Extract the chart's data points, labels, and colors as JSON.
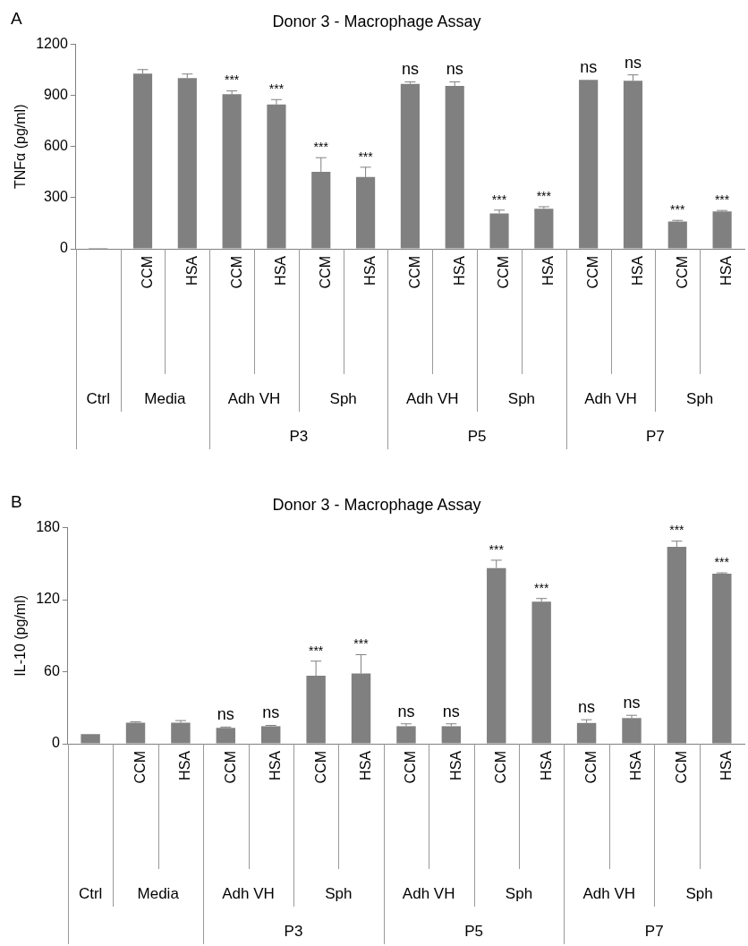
{
  "chart_data": [
    {
      "type": "bar",
      "title": "Donor 3 - Macrophage Assay",
      "ylabel": "TNFα (pg/ml)",
      "categories": [
        null,
        "CCM",
        "HSA",
        "CCM",
        "HSA",
        "CCM",
        "HSA",
        "CCM",
        "HSA",
        "CCM",
        "HSA",
        "CCM",
        "HSA",
        "CCM",
        "HSA"
      ],
      "values": [
        5,
        1028,
        1002,
        907,
        847,
        452,
        421,
        968,
        956,
        208,
        235,
        992,
        987,
        160,
        220
      ],
      "color": "#808080",
      "errors": [
        null,
        [
          1028,
          1052
        ],
        [
          1002,
          1026
        ],
        [
          907,
          927
        ],
        [
          847,
          876
        ],
        [
          452,
          535
        ],
        [
          421,
          479
        ],
        [
          968,
          980
        ],
        [
          956,
          980
        ],
        [
          208,
          227
        ],
        [
          235,
          247
        ],
        null,
        [
          987,
          1021
        ],
        [
          160,
          167
        ],
        [
          220,
          225
        ]
      ],
      "value_labels": [
        null,
        null,
        null,
        "***",
        "***",
        "***",
        "***",
        "ns",
        "ns",
        "***",
        "***",
        "ns",
        "ns",
        "***",
        "***"
      ],
      "ylim": [
        0,
        1200
      ],
      "yticks": [
        0,
        300,
        600,
        900,
        1200
      ],
      "grid": false,
      "legend": false,
      "annotations": [
        "A",
        "Ctrl",
        "Media",
        "Adh VH",
        "Sph",
        "Adh VH",
        "Sph",
        "Adh VH",
        "Sph",
        "P3",
        "P5",
        "P7"
      ]
    },
    {
      "type": "bar",
      "title": "Donor 3 - Macrophage Assay",
      "ylabel": "IL-10 (pg/ml)",
      "categories": [
        null,
        "CCM",
        "HSA",
        "CCM",
        "HSA",
        "CCM",
        "HSA",
        "CCM",
        "HSA",
        "CCM",
        "HSA",
        "CCM",
        "HSA",
        "CCM",
        "HSA"
      ],
      "values": [
        8,
        17.6,
        17.6,
        13.2,
        14.6,
        56.6,
        58.6,
        14.6,
        14.6,
        146.4,
        118.3,
        17.3,
        21.4,
        164,
        141.7
      ],
      "color": "#808080",
      "errors": [
        null,
        [
          17.6,
          18.3
        ],
        [
          17.6,
          19.3
        ],
        [
          13.2,
          13.9
        ],
        [
          14.6,
          15.3
        ],
        [
          56.6,
          68.8
        ],
        [
          58.6,
          74.2
        ],
        [
          14.6,
          16.6
        ],
        [
          14.6,
          16.6
        ],
        [
          146.4,
          152.9
        ],
        [
          118.3,
          121
        ],
        [
          17.3,
          20
        ],
        [
          21.4,
          23.7
        ],
        [
          164,
          168.8
        ],
        [
          141.7,
          142.4
        ]
      ],
      "value_labels": [
        null,
        null,
        null,
        "ns",
        "ns",
        "***",
        "***",
        "ns",
        "ns",
        "***",
        "***",
        "ns",
        "ns",
        "***",
        "***"
      ],
      "ylim": [
        0,
        180
      ],
      "yticks": [
        0,
        60,
        120,
        180
      ],
      "grid": false,
      "legend": false,
      "annotations": [
        "B",
        "Ctrl",
        "Media",
        "Adh VH",
        "Sph",
        "Adh VH",
        "Sph",
        "Adh VH",
        "Sph",
        "P3",
        "P5",
        "P7"
      ]
    }
  ]
}
